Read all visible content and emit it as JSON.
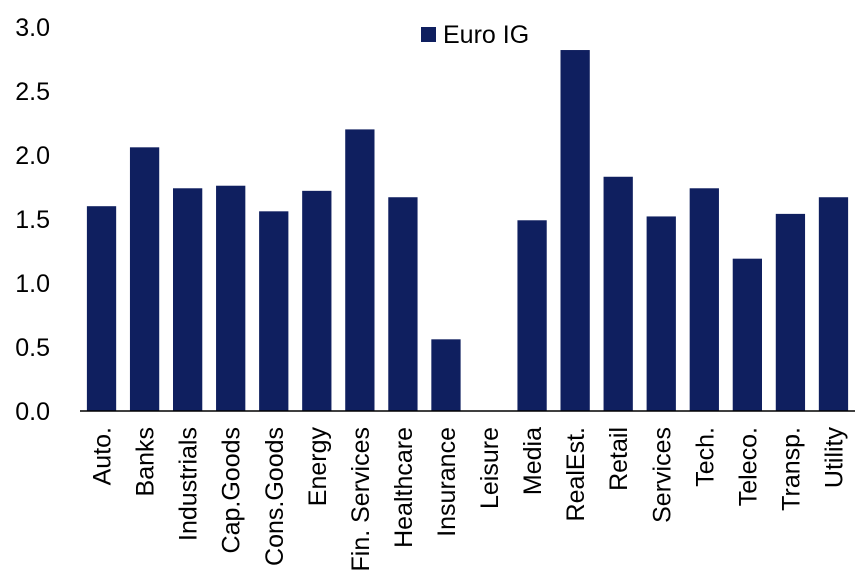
{
  "chart_data": {
    "type": "bar",
    "title": "",
    "xlabel": "",
    "ylabel": "",
    "ylim": [
      0,
      3.0
    ],
    "yticks": [
      "0.0",
      "0.5",
      "1.0",
      "1.5",
      "2.0",
      "2.5",
      "3.0"
    ],
    "grid": false,
    "legend_position": "top-center",
    "categories": [
      "Auto.",
      "Banks",
      "Industrials",
      "Cap.Goods",
      "Cons.Goods",
      "Energy",
      "Fin. Services",
      "Healthcare",
      "Insurance",
      "Leisure",
      "Media",
      "RealEst.",
      "Retail",
      "Services",
      "Tech.",
      "Teleco.",
      "Transp.",
      "Utility"
    ],
    "series": [
      {
        "name": "Euro IG",
        "color": "#0f1f5f",
        "values": [
          1.6,
          2.06,
          1.74,
          1.76,
          1.56,
          1.72,
          2.2,
          1.67,
          0.56,
          0.0,
          1.49,
          2.82,
          1.83,
          1.52,
          1.74,
          1.19,
          1.54,
          1.67
        ]
      }
    ]
  }
}
